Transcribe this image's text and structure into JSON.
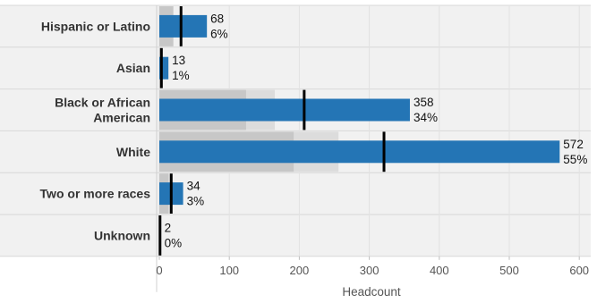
{
  "chart_data": {
    "type": "bar",
    "orientation": "horizontal",
    "title": "",
    "xlabel": "Headcount",
    "ylabel": "",
    "xlim": [
      0,
      660
    ],
    "x_ticks": [
      0,
      100,
      200,
      300,
      400,
      500,
      600
    ],
    "x_tick_labels": [
      "0",
      "100",
      "200",
      "300",
      "400",
      "500",
      "600"
    ],
    "grid": true,
    "legend": "none",
    "categories": [
      {
        "lines": [
          "Hispanic or Latino"
        ]
      },
      {
        "lines": [
          "Asian"
        ]
      },
      {
        "lines": [
          "Black or African",
          "American"
        ]
      },
      {
        "lines": [
          "White"
        ]
      },
      {
        "lines": [
          "Two or more races"
        ]
      },
      {
        "lines": [
          "Unknown"
        ]
      }
    ],
    "values": [
      68,
      13,
      358,
      572,
      34,
      2
    ],
    "percent_labels": [
      "6%",
      "1%",
      "34%",
      "55%",
      "3%",
      "0%"
    ],
    "count_labels": [
      "68",
      "13",
      "358",
      "572",
      "34",
      "2"
    ],
    "benchmark_values": [
      31,
      3,
      207,
      321,
      17,
      1
    ],
    "band_outer": [
      20,
      4,
      165,
      256,
      16,
      1
    ],
    "band_inner": [
      20,
      3,
      124,
      192,
      13,
      1
    ],
    "colors": {
      "bar": "#2475b5",
      "band_outer": "#dcdcdc",
      "band_inner": "#c7c7c7",
      "row_background": "#f1f1f1",
      "row_divider": "#d8d8d8",
      "benchmark": "#000000"
    }
  }
}
